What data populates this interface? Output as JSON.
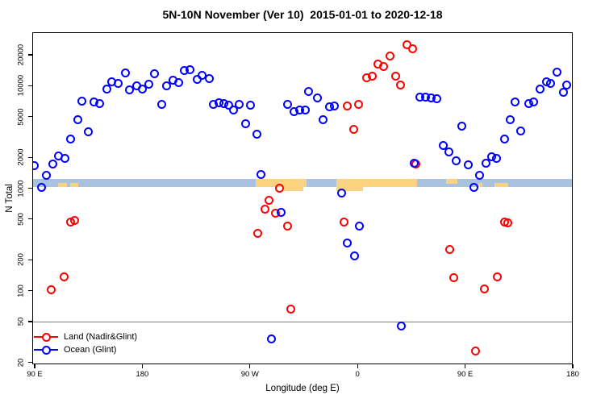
{
  "chart_data": {
    "type": "scatter",
    "title": "5N-10N November (Ver 10)  2015-01-01 to 2020-12-18",
    "xlabel": "Longitude (deg E)",
    "ylabel": "N Total",
    "y_scale": "log",
    "ylim": [
      19,
      33000
    ],
    "xlim_deg": [
      88,
      540
    ],
    "grid": "off",
    "legend_position": "bottom-left",
    "x_ticks": [
      {
        "lon": 90,
        "label": "90 E"
      },
      {
        "lon": 180,
        "label": "180"
      },
      {
        "lon": 270,
        "label": "90 W"
      },
      {
        "lon": 360,
        "label": "0"
      },
      {
        "lon": 450,
        "label": "90 E"
      },
      {
        "lon": 540,
        "label": "180"
      }
    ],
    "y_ticks": [
      "20",
      "50",
      "100",
      "200",
      "500",
      "1000",
      "2000",
      "5000",
      "10000",
      "20000"
    ],
    "reference_line": {
      "n": 50,
      "color": "#808080"
    },
    "coastline_band": {
      "n_low": 1030,
      "n_high": 1230,
      "ocean_color": "#a9c2e0",
      "land_color": "#fbd27f",
      "patches": [
        {
          "from": 109.6,
          "to": 117.0,
          "part": "bottom"
        },
        {
          "from": 119.5,
          "to": 126.2,
          "part": "bottom"
        },
        {
          "from": 274.9,
          "to": 317.4,
          "part": "full"
        },
        {
          "from": 298.5,
          "to": 314.7,
          "part": "bulge"
        },
        {
          "from": 342.3,
          "to": 409.8,
          "part": "full"
        },
        {
          "from": 342.3,
          "to": 364.6,
          "part": "bulge"
        },
        {
          "from": 434.1,
          "to": 443.6,
          "part": "top"
        },
        {
          "from": 461.1,
          "to": 464.4,
          "part": "bottom"
        },
        {
          "from": 474.6,
          "to": 486.0,
          "part": "bottom"
        }
      ]
    },
    "series": [
      {
        "name": "Land (Nadir&Glint)",
        "color": "#ff0000",
        "points": [
          [
            401.5,
            25200
          ],
          [
            406.4,
            23100
          ],
          [
            387.4,
            19600
          ],
          [
            377.4,
            16100
          ],
          [
            381.7,
            15500
          ],
          [
            367.3,
            11900
          ],
          [
            372.5,
            12300
          ],
          [
            392.1,
            12400
          ],
          [
            395.8,
            10100
          ],
          [
            351.1,
            6310
          ],
          [
            361,
            6590
          ],
          [
            356.9,
            3720
          ],
          [
            409.1,
            1730
          ],
          [
            120.2,
            464
          ],
          [
            123.3,
            481
          ],
          [
            114.3,
            137
          ],
          [
            103.7,
            102
          ],
          [
            294.9,
            991
          ],
          [
            285.9,
            766
          ],
          [
            282.5,
            627
          ],
          [
            291.5,
            573
          ],
          [
            301.2,
            426
          ],
          [
            276.4,
            366
          ],
          [
            304.5,
            66
          ],
          [
            348.4,
            464
          ],
          [
            483.1,
            464
          ],
          [
            485.6,
            459
          ],
          [
            437,
            254
          ],
          [
            440.6,
            135
          ],
          [
            477,
            137
          ],
          [
            466.3,
            104
          ],
          [
            459,
            26
          ]
        ]
      },
      {
        "name": "Ocean (Glint)",
        "color": "#0000ff",
        "points": [
          [
            165.6,
            13300
          ],
          [
            154.3,
            10900
          ],
          [
            160,
            10600
          ],
          [
            150.2,
            9350
          ],
          [
            190.5,
            13000
          ],
          [
            169.6,
            9070
          ],
          [
            175.2,
            9930
          ],
          [
            180.2,
            9230
          ],
          [
            185.3,
            10400
          ],
          [
            200.2,
            10000
          ],
          [
            205.6,
            11400
          ],
          [
            210.1,
            10800
          ],
          [
            215.3,
            14000
          ],
          [
            220.2,
            14200
          ],
          [
            226.1,
            11500
          ],
          [
            230.1,
            12600
          ],
          [
            236.2,
            11700
          ],
          [
            196.1,
            6590
          ],
          [
            129.8,
            7040
          ],
          [
            139.9,
            6920
          ],
          [
            144.6,
            6750
          ],
          [
            125.8,
            4640
          ],
          [
            135,
            3520
          ],
          [
            120.2,
            3030
          ],
          [
            110,
            2050
          ],
          [
            115,
            1970
          ],
          [
            105.3,
            1730
          ],
          [
            89.5,
            1660
          ],
          [
            99.9,
            1330
          ],
          [
            239.3,
            6630
          ],
          [
            244.3,
            6840
          ],
          [
            248.1,
            6710
          ],
          [
            252.4,
            6510
          ],
          [
            256.2,
            5770
          ],
          [
            261.2,
            6590
          ],
          [
            270.3,
            6510
          ],
          [
            266.3,
            4270
          ],
          [
            276,
            3350
          ],
          [
            279.4,
            1370
          ],
          [
            301.6,
            6630
          ],
          [
            306.6,
            5600
          ],
          [
            311.8,
            5740
          ],
          [
            316.2,
            5800
          ],
          [
            319.2,
            8700
          ],
          [
            326.3,
            7660
          ],
          [
            336.3,
            6250
          ],
          [
            340.8,
            6310
          ],
          [
            331.3,
            4680
          ],
          [
            412,
            7800
          ],
          [
            417.2,
            7800
          ],
          [
            421.7,
            7660
          ],
          [
            426.6,
            7430
          ],
          [
            447.3,
            4020
          ],
          [
            431.8,
            2590
          ],
          [
            436.3,
            2270
          ],
          [
            442.4,
            1860
          ],
          [
            452.5,
            1680
          ],
          [
            462,
            1330
          ],
          [
            467.6,
            1750
          ],
          [
            472,
            2030
          ],
          [
            476.4,
            1970
          ],
          [
            482.9,
            3010
          ],
          [
            487.9,
            4680
          ],
          [
            491.6,
            7000
          ],
          [
            496.6,
            3610
          ],
          [
            503.1,
            6710
          ],
          [
            507.6,
            7000
          ],
          [
            512.8,
            9350
          ],
          [
            518.2,
            11000
          ],
          [
            521.5,
            10600
          ],
          [
            526.7,
            13600
          ],
          [
            532.3,
            8550
          ],
          [
            534.7,
            10100
          ],
          [
            95.4,
            1010
          ],
          [
            296,
            579
          ],
          [
            346.6,
            889
          ],
          [
            361.4,
            426
          ],
          [
            351.3,
            291
          ],
          [
            357.4,
            218
          ],
          [
            457.5,
            1010
          ],
          [
            407.6,
            1750
          ],
          [
            287.7,
            34
          ],
          [
            396.3,
            45
          ]
        ]
      }
    ]
  }
}
